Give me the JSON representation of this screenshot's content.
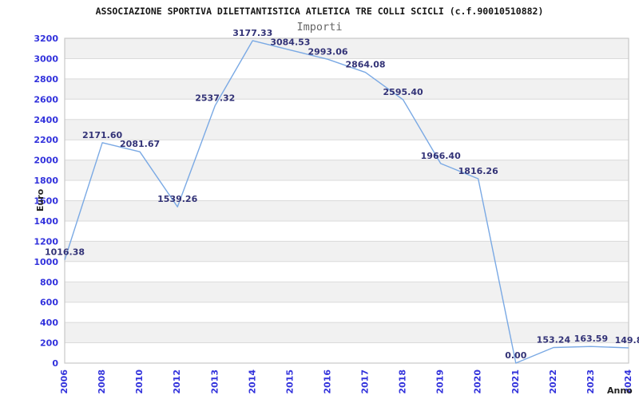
{
  "chart": {
    "title": "ASSOCIAZIONE SPORTIVA DILETTANTISTICA ATLETICA TRE COLLI SCICLI (c.f.90010510882)",
    "subtitle": "Importi",
    "x_axis_label": "Anno",
    "y_axis_label": "Euro"
  },
  "chart_data": {
    "type": "line",
    "title": "Importi",
    "categories": [
      "2006",
      "2008",
      "2010",
      "2012",
      "2013",
      "2014",
      "2015",
      "2016",
      "2017",
      "2018",
      "2019",
      "2020",
      "2021",
      "2022",
      "2023",
      "2024"
    ],
    "values": [
      1016.38,
      2171.6,
      2081.67,
      1539.26,
      2537.32,
      3177.33,
      3084.53,
      2993.06,
      2864.08,
      2595.4,
      1966.4,
      1816.26,
      0.0,
      153.24,
      163.59,
      149.8
    ],
    "point_labels": [
      "1016.38",
      "2171.60",
      "2081.67",
      "1539.26",
      "2537.32",
      "3177.33",
      "3084.53",
      "2993.06",
      "2864.08",
      "2595.40",
      "1966.40",
      "1816.26",
      "0.00",
      "153.24",
      "163.59",
      "149.8"
    ],
    "xlabel": "Anno",
    "ylabel": "Euro",
    "ylim": [
      0,
      3200
    ],
    "y_tick_step": 200,
    "y_tick_labels": [
      "0",
      "200",
      "400",
      "600",
      "800",
      "1000",
      "1200",
      "1400",
      "1600",
      "1800",
      "2000",
      "2200",
      "2400",
      "2600",
      "2800",
      "3000",
      "3200"
    ],
    "grid": true,
    "legend": "none",
    "band_fill": "alternating horizontal bands, gray at top",
    "colors": {
      "line": "#7aa9e4",
      "tick_label": "#3232dc",
      "point_label": "#333377",
      "band": "#f1f1f1",
      "grid": "#dadada",
      "border": "#c8c8c8",
      "title": "#151515",
      "subtitle": "#666666",
      "axis_label": "#222222",
      "background": "#ffffff"
    }
  }
}
